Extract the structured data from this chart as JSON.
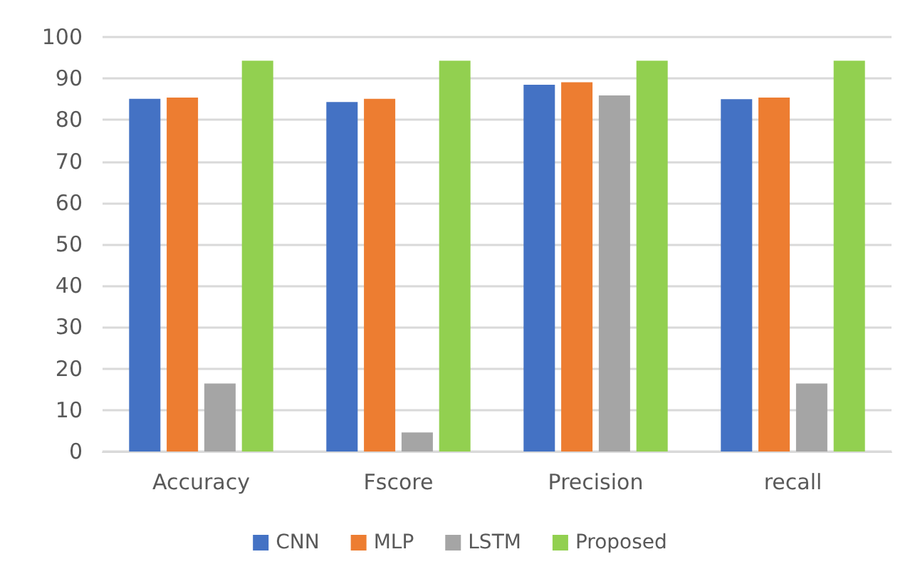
{
  "chart_data": {
    "type": "bar",
    "categories": [
      "Accuracy",
      "Fscore",
      "Precision",
      "recall"
    ],
    "series": [
      {
        "name": "CNN",
        "color": "#4472c4",
        "values": [
          85.1,
          84.3,
          88.5,
          85.0
        ]
      },
      {
        "name": "MLP",
        "color": "#ed7d31",
        "values": [
          85.4,
          85.1,
          89.1,
          85.4
        ]
      },
      {
        "name": "LSTM",
        "color": "#a5a5a5",
        "values": [
          16.4,
          4.6,
          85.9,
          16.4
        ]
      },
      {
        "name": "Proposed",
        "color": "#92d050",
        "values": [
          94.3,
          94.3,
          94.3,
          94.3
        ]
      }
    ],
    "ylim": [
      0,
      100
    ],
    "yticks": [
      0,
      10,
      20,
      30,
      40,
      50,
      60,
      70,
      80,
      90,
      100
    ],
    "grid": "y",
    "legend": "bottom"
  }
}
